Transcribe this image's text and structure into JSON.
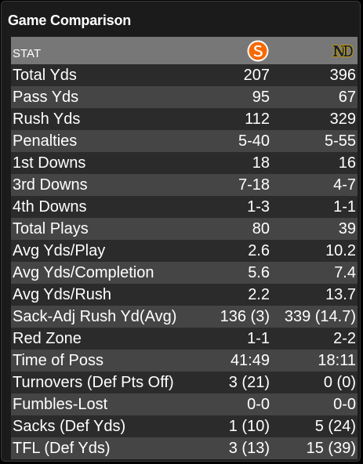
{
  "title": "Game Comparison",
  "header": {
    "stat_label": "STAT",
    "home_team_logo": "syracuse-s-logo",
    "away_team_logo": "notre-dame-nd-logo"
  },
  "colors": {
    "home_team": "#f76900",
    "away_team": "#0c2340",
    "header_bg": "#777777",
    "row_dark": "#2b2b2b",
    "row_light": "#454545"
  },
  "rows": [
    {
      "stat": "Total Yds",
      "home": "207",
      "away": "396"
    },
    {
      "stat": "Pass Yds",
      "home": "95",
      "away": "67"
    },
    {
      "stat": "Rush Yds",
      "home": "112",
      "away": "329"
    },
    {
      "stat": "Penalties",
      "home": "5-40",
      "away": "5-55"
    },
    {
      "stat": "1st Downs",
      "home": "18",
      "away": "16"
    },
    {
      "stat": "3rd Downs",
      "home": "7-18",
      "away": "4-7"
    },
    {
      "stat": "4th Downs",
      "home": "1-3",
      "away": "1-1"
    },
    {
      "stat": "Total Plays",
      "home": "80",
      "away": "39"
    },
    {
      "stat": "Avg Yds/Play",
      "home": "2.6",
      "away": "10.2"
    },
    {
      "stat": "Avg Yds/Completion",
      "home": "5.6",
      "away": "7.4"
    },
    {
      "stat": "Avg Yds/Rush",
      "home": "2.2",
      "away": "13.7"
    },
    {
      "stat": "Sack-Adj Rush Yd(Avg)",
      "home": "136 (3)",
      "away": "339 (14.7)"
    },
    {
      "stat": "Red Zone",
      "home": "1-1",
      "away": "2-2"
    },
    {
      "stat": "Time of Poss",
      "home": "41:49",
      "away": "18:11"
    },
    {
      "stat": "Turnovers (Def Pts Off)",
      "home": "3 (21)",
      "away": "0 (0)"
    },
    {
      "stat": "Fumbles-Lost",
      "home": "0-0",
      "away": "0-0"
    },
    {
      "stat": "Sacks (Def Yds)",
      "home": "1 (10)",
      "away": "5 (24)"
    },
    {
      "stat": "TFL (Def Yds)",
      "home": "3 (13)",
      "away": "15 (39)"
    }
  ]
}
